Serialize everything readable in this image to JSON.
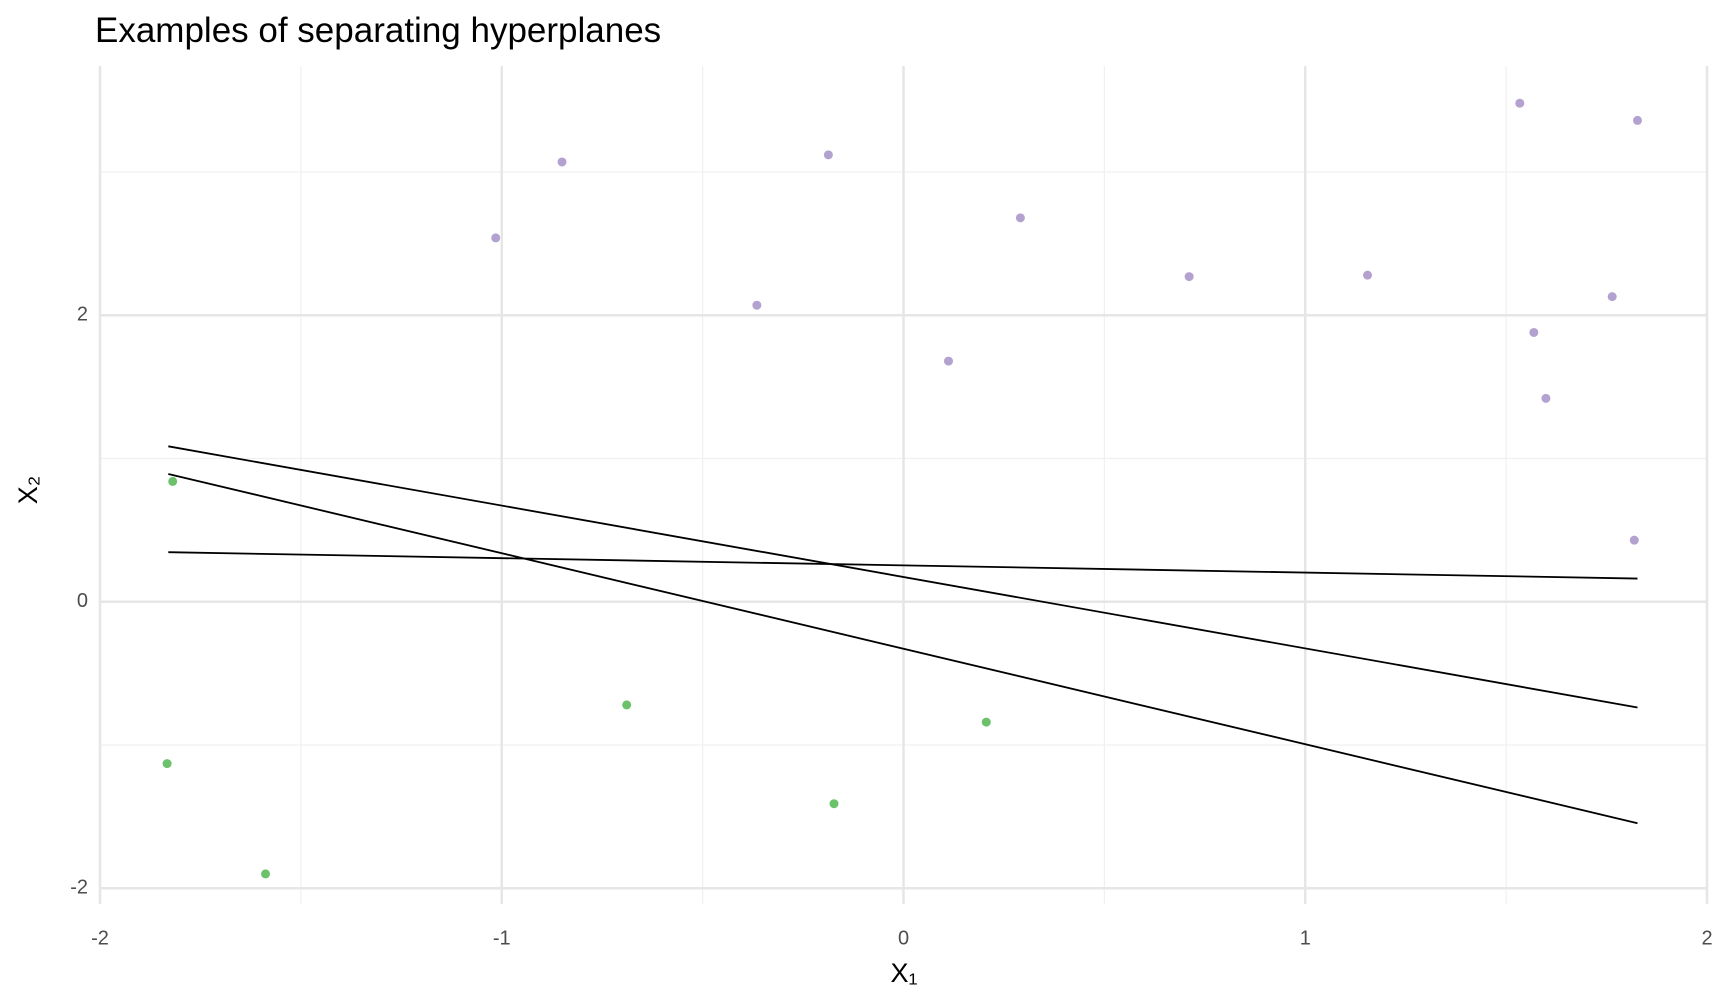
{
  "chart_data": {
    "type": "scatter",
    "title": "Examples of separating hyperplanes",
    "xlabel": "X₁",
    "ylabel": "X₂",
    "xlim": [
      -2,
      2
    ],
    "ylim": [
      -2.11,
      3.74
    ],
    "xticks": [
      -2,
      -1,
      0,
      1,
      2
    ],
    "yticks": [
      -2,
      0,
      2
    ],
    "x_minor_grid": [
      -1.5,
      -0.5,
      0.5,
      1.5
    ],
    "y_minor_grid": [
      -1,
      1,
      3
    ],
    "grid": true,
    "series": [
      {
        "color": "#b3a2d0",
        "x": [
          -0.85,
          -0.187,
          -1.015,
          0.291,
          -0.365,
          0.711,
          1.155,
          0.112,
          1.534,
          1.827,
          1.764,
          1.569,
          1.599,
          1.819
        ],
        "values": [
          3.07,
          3.12,
          2.54,
          2.68,
          2.07,
          2.27,
          2.28,
          1.68,
          3.48,
          3.36,
          2.13,
          1.88,
          1.42,
          0.43
        ]
      },
      {
        "color": "#6cc26a",
        "x": [
          -1.819,
          -1.833,
          -1.588,
          -0.689,
          -0.173,
          0.206
        ],
        "values": [
          0.84,
          -1.13,
          -1.9,
          -0.72,
          -1.41,
          -0.84
        ]
      }
    ],
    "lines": [
      {
        "color": "#000000",
        "x": [
          -1.83,
          1.827
        ],
        "values": [
          1.085,
          -0.738
        ]
      },
      {
        "color": "#000000",
        "x": [
          -1.83,
          1.827
        ],
        "values": [
          0.892,
          -1.546
        ]
      },
      {
        "color": "#000000",
        "x": [
          -1.83,
          1.827
        ],
        "values": [
          0.346,
          0.162
        ]
      }
    ]
  }
}
